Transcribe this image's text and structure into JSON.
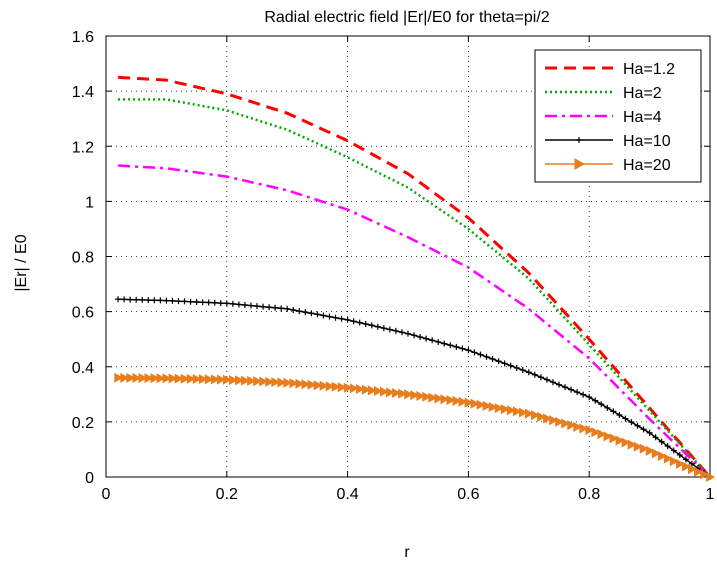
{
  "chart_data": {
    "type": "line",
    "title": "Radial electric field |Er|/E0 for theta=pi/2",
    "xlabel": "r",
    "ylabel": "|Er| / E0",
    "xlim": [
      0,
      1
    ],
    "ylim": [
      0,
      1.6
    ],
    "x_ticks": [
      "0",
      "0.2",
      "0.4",
      "0.6",
      "0.8",
      "1"
    ],
    "y_ticks": [
      "0",
      "0.2",
      "0.4",
      "0.6",
      "0.8",
      "1",
      "1.2",
      "1.4",
      "1.6"
    ],
    "grid": true,
    "legend_position": "top-right",
    "series": [
      {
        "name": "Ha=1.2",
        "color": "#ff0000",
        "style": "dashed",
        "x": [
          0.02,
          0.1,
          0.2,
          0.3,
          0.4,
          0.5,
          0.6,
          0.7,
          0.8,
          0.9,
          1.0
        ],
        "y": [
          1.45,
          1.44,
          1.39,
          1.32,
          1.22,
          1.1,
          0.94,
          0.74,
          0.5,
          0.25,
          0.0
        ]
      },
      {
        "name": "Ha=2",
        "color": "#00aa00",
        "style": "dotted",
        "x": [
          0.02,
          0.1,
          0.2,
          0.3,
          0.4,
          0.5,
          0.6,
          0.7,
          0.8,
          0.9,
          1.0
        ],
        "y": [
          1.37,
          1.37,
          1.33,
          1.26,
          1.16,
          1.05,
          0.9,
          0.72,
          0.48,
          0.24,
          0.0
        ]
      },
      {
        "name": "Ha=4",
        "color": "#ff00ff",
        "style": "dashdot",
        "x": [
          0.02,
          0.1,
          0.2,
          0.3,
          0.4,
          0.5,
          0.6,
          0.7,
          0.8,
          0.9,
          1.0
        ],
        "y": [
          1.13,
          1.12,
          1.09,
          1.04,
          0.97,
          0.87,
          0.76,
          0.61,
          0.43,
          0.21,
          0.0
        ]
      },
      {
        "name": "Ha=10",
        "color": "#000000",
        "style": "solid-plus",
        "x": [
          0.02,
          0.1,
          0.2,
          0.3,
          0.4,
          0.5,
          0.6,
          0.7,
          0.8,
          0.9,
          1.0
        ],
        "y": [
          0.645,
          0.64,
          0.63,
          0.61,
          0.57,
          0.52,
          0.46,
          0.38,
          0.29,
          0.16,
          0.0
        ]
      },
      {
        "name": "Ha=20",
        "color": "#e87d1e",
        "style": "solid-triangle",
        "x": [
          0.02,
          0.1,
          0.2,
          0.3,
          0.4,
          0.5,
          0.6,
          0.7,
          0.8,
          0.9,
          1.0
        ],
        "y": [
          0.36,
          0.358,
          0.353,
          0.342,
          0.324,
          0.3,
          0.27,
          0.23,
          0.17,
          0.095,
          0.0
        ]
      }
    ]
  }
}
